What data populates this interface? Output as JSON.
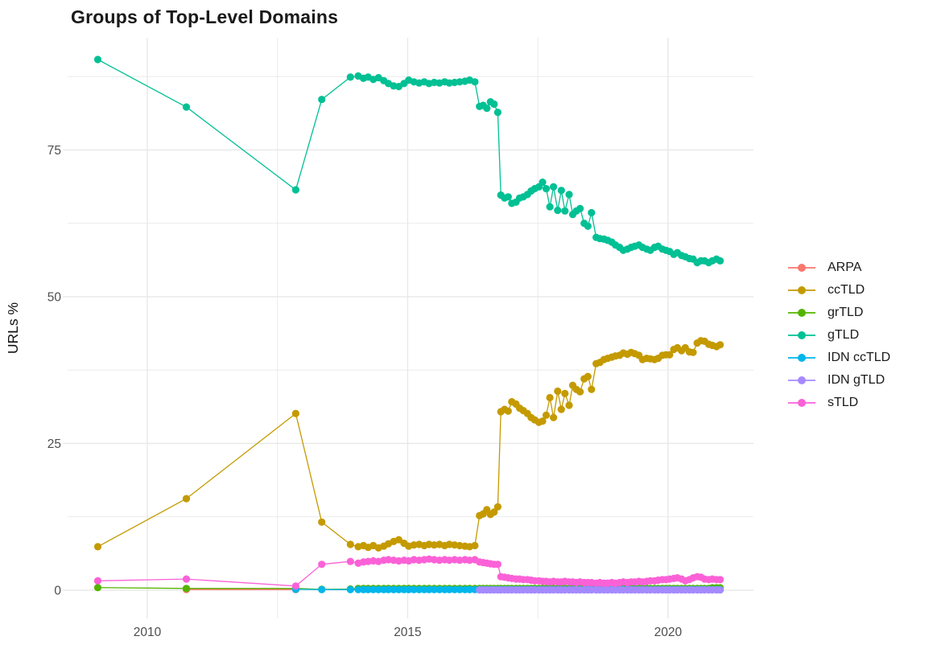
{
  "chart_data": {
    "type": "line",
    "title": "Groups of Top-Level Domains",
    "xlabel": "",
    "ylabel": "URLs %",
    "x_ticks": [
      2010,
      2015,
      2020
    ],
    "x_tick_labels": [
      "2010",
      "2015",
      "2020"
    ],
    "y_ticks": [
      0,
      25,
      50,
      75
    ],
    "y_tick_labels": [
      "0",
      "25",
      "50",
      "75"
    ],
    "x_minor": [
      2012.5,
      2017.5
    ],
    "y_minor": [
      12.5,
      37.5,
      62.5,
      87.5
    ],
    "xlim": [
      2008.47,
      2021.64
    ],
    "ylim": [
      -4.8,
      94.1
    ],
    "grid": true,
    "grid_color": "#e8e8e8",
    "background": "#ffffff",
    "legend_position": "right",
    "series": [
      {
        "name": "ARPA",
        "color": "#F8766D",
        "x": [
          2010.75,
          2012.85
        ],
        "y": [
          0.12,
          0.1
        ]
      },
      {
        "name": "ccTLD",
        "color": "#C49A00",
        "x": [
          2009.05,
          2010.75,
          2012.85,
          2013.35,
          2013.9,
          2014.05,
          2014.15,
          2014.24,
          2014.34,
          2014.44,
          2014.54,
          2014.63,
          2014.73,
          2014.83,
          2014.93,
          2015.02,
          2015.12,
          2015.22,
          2015.32,
          2015.41,
          2015.51,
          2015.61,
          2015.71,
          2015.8,
          2015.9,
          2016.0,
          2016.1,
          2016.19,
          2016.29,
          2016.38,
          2016.45,
          2016.52,
          2016.59,
          2016.66,
          2016.73,
          2016.79,
          2016.86,
          2016.93,
          2017.0,
          2017.08,
          2017.15,
          2017.22,
          2017.3,
          2017.37,
          2017.44,
          2017.52,
          2017.59,
          2017.66,
          2017.73,
          2017.8,
          2017.88,
          2017.95,
          2018.02,
          2018.1,
          2018.17,
          2018.24,
          2018.31,
          2018.39,
          2018.46,
          2018.53,
          2018.62,
          2018.69,
          2018.77,
          2018.84,
          2018.92,
          2018.99,
          2019.07,
          2019.14,
          2019.22,
          2019.29,
          2019.36,
          2019.44,
          2019.51,
          2019.59,
          2019.66,
          2019.74,
          2019.81,
          2019.89,
          2019.96,
          2020.03,
          2020.11,
          2020.18,
          2020.26,
          2020.33,
          2020.41,
          2020.48,
          2020.56,
          2020.63,
          2020.7,
          2020.78,
          2020.85,
          2020.93,
          2021.0
        ],
        "y": [
          7.4,
          15.6,
          30.1,
          11.6,
          7.8,
          7.4,
          7.6,
          7.3,
          7.6,
          7.2,
          7.5,
          7.9,
          8.3,
          8.6,
          8.0,
          7.5,
          7.7,
          7.8,
          7.6,
          7.8,
          7.7,
          7.8,
          7.6,
          7.8,
          7.7,
          7.6,
          7.5,
          7.4,
          7.6,
          12.7,
          13.0,
          13.7,
          12.9,
          13.3,
          14.2,
          30.4,
          30.8,
          30.5,
          32.1,
          31.7,
          31.0,
          30.6,
          30.1,
          29.4,
          29.0,
          28.6,
          28.8,
          29.8,
          32.8,
          29.4,
          33.9,
          30.8,
          33.5,
          31.5,
          34.9,
          34.2,
          33.8,
          36.0,
          36.4,
          34.2,
          38.6,
          38.8,
          39.3,
          39.5,
          39.7,
          39.9,
          40.0,
          40.4,
          40.2,
          40.5,
          40.3,
          40.0,
          39.3,
          39.5,
          39.4,
          39.3,
          39.5,
          40.0,
          40.1,
          40.1,
          41.0,
          41.3,
          40.8,
          41.3,
          40.6,
          40.5,
          42.1,
          42.5,
          42.4,
          41.9,
          41.7,
          41.5,
          41.8
        ]
      },
      {
        "name": "grTLD",
        "color": "#53B400",
        "x": [
          2009.05,
          2010.75,
          2012.85,
          2013.35,
          2013.9,
          2014.05,
          2014.15,
          2014.24,
          2014.34,
          2014.44,
          2014.54,
          2014.63,
          2014.73,
          2014.83,
          2014.93,
          2015.02,
          2015.12,
          2015.22,
          2015.32,
          2015.41,
          2015.51,
          2015.61,
          2015.71,
          2015.8,
          2015.9,
          2016.0,
          2016.1,
          2016.19,
          2016.29,
          2016.38,
          2016.45,
          2016.52,
          2016.59,
          2016.66,
          2016.73,
          2016.79,
          2016.86,
          2016.93,
          2017.0,
          2017.08,
          2017.15,
          2017.22,
          2017.3,
          2017.37,
          2017.44,
          2017.52,
          2017.59,
          2017.66,
          2017.73,
          2017.8,
          2017.88,
          2017.95,
          2018.02,
          2018.1,
          2018.17,
          2018.24,
          2018.31,
          2018.39,
          2018.46,
          2018.53,
          2018.62,
          2018.69,
          2018.77,
          2018.84,
          2018.92,
          2018.99,
          2019.07,
          2019.14,
          2019.22,
          2019.29,
          2019.36,
          2019.44,
          2019.51,
          2019.59,
          2019.66,
          2019.74,
          2019.81,
          2019.89,
          2019.96,
          2020.03,
          2020.11,
          2020.18,
          2020.26,
          2020.33,
          2020.41,
          2020.48,
          2020.56,
          2020.63,
          2020.7,
          2020.78,
          2020.85,
          2020.93,
          2021.0
        ],
        "y": [
          0.45,
          0.3,
          0.3,
          0.15,
          0.2,
          0.3,
          0.3,
          0.3,
          0.3,
          0.3,
          0.3,
          0.3,
          0.3,
          0.3,
          0.3,
          0.3,
          0.3,
          0.3,
          0.3,
          0.3,
          0.3,
          0.3,
          0.3,
          0.3,
          0.3,
          0.3,
          0.3,
          0.3,
          0.3,
          0.3,
          0.3,
          0.3,
          0.3,
          0.3,
          0.3,
          0.3,
          0.3,
          0.3,
          0.3,
          0.3,
          0.3,
          0.3,
          0.3,
          0.3,
          0.3,
          0.3,
          0.3,
          0.3,
          0.3,
          0.3,
          0.3,
          0.3,
          0.3,
          0.3,
          0.3,
          0.3,
          0.3,
          0.3,
          0.3,
          0.3,
          0.3,
          0.3,
          0.3,
          0.3,
          0.3,
          0.3,
          0.3,
          0.3,
          0.3,
          0.3,
          0.3,
          0.3,
          0.3,
          0.3,
          0.3,
          0.3,
          0.3,
          0.3,
          0.3,
          0.3,
          0.3,
          0.3,
          0.3,
          0.3,
          0.3,
          0.3,
          0.3,
          0.3,
          0.3,
          0.3,
          0.4,
          0.4,
          0.4
        ]
      },
      {
        "name": "gTLD",
        "color": "#00C094",
        "x": [
          2009.05,
          2010.75,
          2012.85,
          2013.35,
          2013.9,
          2014.05,
          2014.15,
          2014.24,
          2014.34,
          2014.44,
          2014.54,
          2014.63,
          2014.73,
          2014.83,
          2014.93,
          2015.02,
          2015.12,
          2015.22,
          2015.32,
          2015.41,
          2015.51,
          2015.61,
          2015.71,
          2015.8,
          2015.9,
          2016.0,
          2016.1,
          2016.19,
          2016.29,
          2016.38,
          2016.45,
          2016.52,
          2016.59,
          2016.66,
          2016.73,
          2016.79,
          2016.86,
          2016.93,
          2017.0,
          2017.08,
          2017.15,
          2017.22,
          2017.3,
          2017.37,
          2017.44,
          2017.52,
          2017.59,
          2017.66,
          2017.73,
          2017.8,
          2017.88,
          2017.95,
          2018.02,
          2018.1,
          2018.17,
          2018.24,
          2018.31,
          2018.39,
          2018.46,
          2018.53,
          2018.62,
          2018.69,
          2018.77,
          2018.84,
          2018.92,
          2018.99,
          2019.07,
          2019.14,
          2019.22,
          2019.29,
          2019.36,
          2019.44,
          2019.51,
          2019.59,
          2019.66,
          2019.74,
          2019.81,
          2019.89,
          2019.96,
          2020.03,
          2020.11,
          2020.18,
          2020.26,
          2020.33,
          2020.41,
          2020.48,
          2020.56,
          2020.63,
          2020.7,
          2020.78,
          2020.85,
          2020.93,
          2021.0
        ],
        "y": [
          90.4,
          82.3,
          68.2,
          83.6,
          87.4,
          87.6,
          87.2,
          87.4,
          87.0,
          87.3,
          86.8,
          86.3,
          85.9,
          85.8,
          86.3,
          86.9,
          86.6,
          86.4,
          86.6,
          86.3,
          86.5,
          86.4,
          86.6,
          86.4,
          86.5,
          86.6,
          86.7,
          86.9,
          86.6,
          82.4,
          82.6,
          82.1,
          83.2,
          82.8,
          81.4,
          67.3,
          66.8,
          67.0,
          65.9,
          66.1,
          66.8,
          67.0,
          67.4,
          68.0,
          68.4,
          68.7,
          69.5,
          68.4,
          65.3,
          68.7,
          64.7,
          68.1,
          64.6,
          67.4,
          64.0,
          64.6,
          65.0,
          62.5,
          62.0,
          64.3,
          60.1,
          59.9,
          59.8,
          59.6,
          59.3,
          58.8,
          58.4,
          57.9,
          58.1,
          58.4,
          58.6,
          58.8,
          58.4,
          58.1,
          57.9,
          58.4,
          58.6,
          58.1,
          57.9,
          57.7,
          57.2,
          57.5,
          57.0,
          56.8,
          56.5,
          56.4,
          55.8,
          56.1,
          56.1,
          55.8,
          56.1,
          56.4,
          56.1
        ]
      },
      {
        "name": "IDN ccTLD",
        "color": "#00B6EB",
        "x": [
          2012.85,
          2013.35,
          2013.9,
          2014.05,
          2014.15,
          2014.24,
          2014.34,
          2014.44,
          2014.54,
          2014.63,
          2014.73,
          2014.83,
          2014.93,
          2015.02,
          2015.12,
          2015.22,
          2015.32,
          2015.41,
          2015.51,
          2015.61,
          2015.71,
          2015.8,
          2015.9,
          2016.0,
          2016.1,
          2016.19,
          2016.29,
          2016.38,
          2016.45,
          2016.52,
          2016.59,
          2016.66,
          2016.73,
          2016.79,
          2016.86,
          2016.93,
          2017.0,
          2017.08,
          2017.15,
          2017.22,
          2017.3,
          2017.37,
          2017.44,
          2017.52,
          2017.59,
          2017.66,
          2017.73,
          2017.8,
          2017.88,
          2017.95,
          2018.02,
          2018.1,
          2018.17,
          2018.24,
          2018.31,
          2018.39,
          2018.46,
          2018.53,
          2018.62,
          2018.69,
          2018.77,
          2018.84,
          2018.92,
          2018.99,
          2019.07,
          2019.14,
          2019.22,
          2019.29,
          2019.36,
          2019.44,
          2019.51,
          2019.59,
          2019.66,
          2019.74,
          2019.81,
          2019.89,
          2019.96,
          2020.03,
          2020.11,
          2020.18,
          2020.26,
          2020.33,
          2020.41,
          2020.48,
          2020.56,
          2020.63,
          2020.7,
          2020.78,
          2020.85,
          2020.93,
          2021.0
        ],
        "y": [
          0.15,
          0.1,
          0.1,
          0.1,
          0.1,
          0.1,
          0.1,
          0.1,
          0.1,
          0.1,
          0.1,
          0.1,
          0.1,
          0.1,
          0.1,
          0.1,
          0.1,
          0.1,
          0.1,
          0.1,
          0.1,
          0.1,
          0.1,
          0.1,
          0.1,
          0.1,
          0.1,
          0.1,
          0.1,
          0.1,
          0.1,
          0.1,
          0.1,
          0.1,
          0.1,
          0.1,
          0.1,
          0.1,
          0.1,
          0.1,
          0.1,
          0.1,
          0.1,
          0.1,
          0.1,
          0.1,
          0.1,
          0.1,
          0.1,
          0.1,
          0.1,
          0.1,
          0.1,
          0.1,
          0.1,
          0.1,
          0.1,
          0.1,
          0.1,
          0.1,
          0.1,
          0.1,
          0.1,
          0.1,
          0.1,
          0.1,
          0.1,
          0.1,
          0.1,
          0.1,
          0.1,
          0.1,
          0.1,
          0.1,
          0.1,
          0.1,
          0.1,
          0.1,
          0.1,
          0.1,
          0.1,
          0.1,
          0.1,
          0.1,
          0.1,
          0.1,
          0.1,
          0.1,
          0.1,
          0.1,
          0.1
        ]
      },
      {
        "name": "IDN gTLD",
        "color": "#A58AFF",
        "x": [
          2016.38,
          2016.45,
          2016.52,
          2016.59,
          2016.66,
          2016.73,
          2016.79,
          2016.86,
          2016.93,
          2017.0,
          2017.08,
          2017.15,
          2017.22,
          2017.3,
          2017.37,
          2017.44,
          2017.52,
          2017.59,
          2017.66,
          2017.73,
          2017.8,
          2017.88,
          2017.95,
          2018.02,
          2018.1,
          2018.17,
          2018.24,
          2018.31,
          2018.39,
          2018.46,
          2018.53,
          2018.62,
          2018.69,
          2018.77,
          2018.84,
          2018.92,
          2018.99,
          2019.07,
          2019.14,
          2019.22,
          2019.29,
          2019.36,
          2019.44,
          2019.51,
          2019.59,
          2019.66,
          2019.74,
          2019.81,
          2019.89,
          2019.96,
          2020.03,
          2020.11,
          2020.18,
          2020.26,
          2020.33,
          2020.41,
          2020.48,
          2020.56,
          2020.63,
          2020.7,
          2020.78,
          2020.85,
          2020.93,
          2021.0
        ],
        "y": [
          0.05,
          0.05,
          0.05,
          0.05,
          0.05,
          0.05,
          0.05,
          0.05,
          0.05,
          0.05,
          0.05,
          0.05,
          0.05,
          0.05,
          0.05,
          0.05,
          0.05,
          0.05,
          0.05,
          0.05,
          0.05,
          0.05,
          0.05,
          0.05,
          0.05,
          0.05,
          0.05,
          0.05,
          0.05,
          0.05,
          0.05,
          0.05,
          0.05,
          0.05,
          0.05,
          0.05,
          0.05,
          0.05,
          0.05,
          0.05,
          0.05,
          0.05,
          0.05,
          0.05,
          0.05,
          0.05,
          0.05,
          0.05,
          0.05,
          0.05,
          0.05,
          0.05,
          0.05,
          0.05,
          0.05,
          0.05,
          0.05,
          0.05,
          0.05,
          0.05,
          0.05,
          0.05,
          0.05,
          0.05
        ]
      },
      {
        "name": "sTLD",
        "color": "#FB61D7",
        "x": [
          2009.05,
          2010.75,
          2012.85,
          2013.35,
          2013.9,
          2014.05,
          2014.15,
          2014.24,
          2014.34,
          2014.44,
          2014.54,
          2014.63,
          2014.73,
          2014.83,
          2014.93,
          2015.02,
          2015.12,
          2015.22,
          2015.32,
          2015.41,
          2015.51,
          2015.61,
          2015.71,
          2015.8,
          2015.9,
          2016.0,
          2016.1,
          2016.19,
          2016.29,
          2016.38,
          2016.45,
          2016.52,
          2016.59,
          2016.66,
          2016.73,
          2016.79,
          2016.86,
          2016.93,
          2017.0,
          2017.08,
          2017.15,
          2017.22,
          2017.3,
          2017.37,
          2017.44,
          2017.52,
          2017.59,
          2017.66,
          2017.73,
          2017.8,
          2017.88,
          2017.95,
          2018.02,
          2018.1,
          2018.17,
          2018.24,
          2018.31,
          2018.39,
          2018.46,
          2018.53,
          2018.62,
          2018.69,
          2018.77,
          2018.84,
          2018.92,
          2018.99,
          2019.07,
          2019.14,
          2019.22,
          2019.29,
          2019.36,
          2019.44,
          2019.51,
          2019.59,
          2019.66,
          2019.74,
          2019.81,
          2019.89,
          2019.96,
          2020.03,
          2020.11,
          2020.18,
          2020.26,
          2020.33,
          2020.41,
          2020.48,
          2020.56,
          2020.63,
          2020.7,
          2020.78,
          2020.85,
          2020.93,
          2021.0
        ],
        "y": [
          1.6,
          1.9,
          0.7,
          4.4,
          4.9,
          4.6,
          4.8,
          4.9,
          5.0,
          4.9,
          5.1,
          5.2,
          5.1,
          5.0,
          5.1,
          5.0,
          5.2,
          5.1,
          5.2,
          5.3,
          5.2,
          5.1,
          5.2,
          5.1,
          5.2,
          5.1,
          5.2,
          5.1,
          5.2,
          4.8,
          4.7,
          4.6,
          4.5,
          4.4,
          4.4,
          2.3,
          2.2,
          2.1,
          2.0,
          1.9,
          1.9,
          1.8,
          1.8,
          1.7,
          1.6,
          1.6,
          1.5,
          1.5,
          1.4,
          1.5,
          1.4,
          1.4,
          1.5,
          1.4,
          1.4,
          1.3,
          1.4,
          1.3,
          1.3,
          1.3,
          1.2,
          1.3,
          1.2,
          1.2,
          1.3,
          1.2,
          1.3,
          1.4,
          1.3,
          1.4,
          1.4,
          1.5,
          1.4,
          1.5,
          1.6,
          1.6,
          1.7,
          1.8,
          1.8,
          1.9,
          2.0,
          2.1,
          1.9,
          1.6,
          1.8,
          2.1,
          2.3,
          2.2,
          1.9,
          1.8,
          1.9,
          1.8,
          1.8
        ]
      }
    ]
  }
}
